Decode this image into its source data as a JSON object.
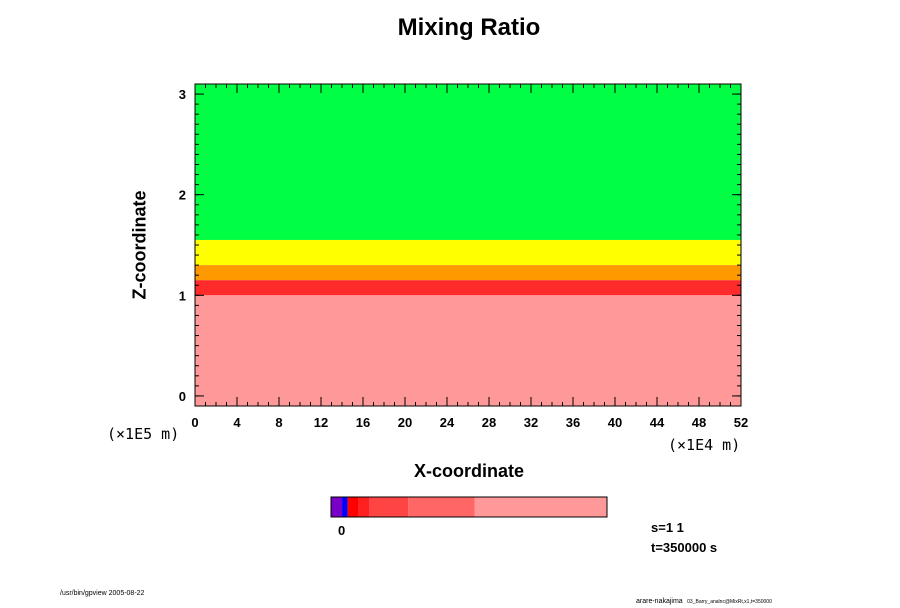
{
  "chart_data": {
    "type": "heatmap",
    "title": "Mixing Ratio",
    "xlabel": "X-coordinate",
    "ylabel": "Z-coordinate",
    "x_ticks": [
      "0",
      "4",
      "8",
      "12",
      "16",
      "20",
      "24",
      "28",
      "32",
      "36",
      "40",
      "44",
      "48",
      "52"
    ],
    "y_ticks": [
      "0",
      "1",
      "2",
      "3"
    ],
    "x_unit": "(×1E4 m)",
    "y_unit": "(×1E5 m)",
    "xlim": [
      0,
      52
    ],
    "ylim": [
      -0.1,
      3.1
    ],
    "fields": [
      {
        "z_bottom": 1.55,
        "z_top": 3.1,
        "color": "#00ff44"
      },
      {
        "z_bottom": 1.3,
        "z_top": 1.55,
        "color": "#ffff00"
      },
      {
        "z_bottom": 1.15,
        "z_top": 1.3,
        "color": "#ff9900"
      },
      {
        "z_bottom": 1.0,
        "z_top": 1.15,
        "color": "#ff2a2a"
      },
      {
        "z_bottom": -0.1,
        "z_top": 1.0,
        "color": "#ff9999"
      }
    ],
    "colorbar": {
      "colors": [
        "#7a00c8",
        "#0000ff",
        "#ff0000",
        "#ff2020",
        "#ff4444",
        "#ff6666",
        "#ff9999"
      ],
      "label": "0"
    },
    "info": {
      "s": "s=1 1",
      "t": "t=350000 s"
    }
  },
  "footer": {
    "left": "/usr/bin/gpview 2005-08-22",
    "right_main": "arare-nakajima",
    "right_small": "03_Barry_analnc@MixRt,x1,t=350000"
  }
}
